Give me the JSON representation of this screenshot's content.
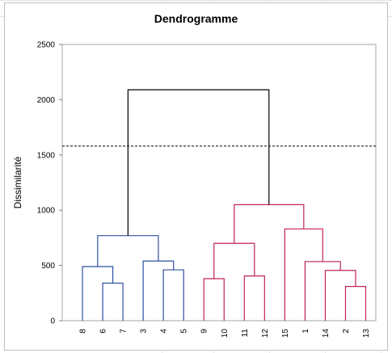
{
  "chart_data": {
    "type": "dendrogram",
    "title": "Dendrogramme",
    "ylabel": "Dissimilarité",
    "xlabel": "",
    "ylim": [
      0,
      2500
    ],
    "yticks": [
      "0",
      "500",
      "1000",
      "1500",
      "2000",
      "2500"
    ],
    "leaves": [
      "8",
      "6",
      "7",
      "3",
      "4",
      "5",
      "9",
      "10",
      "11",
      "12",
      "15",
      "1",
      "14",
      "2",
      "13"
    ],
    "truncation_level": 1580,
    "colors": {
      "cluster_1": "#2e4fa3",
      "cluster_2": "#c0225f",
      "root": "#000000",
      "frame": "#bfbfbf"
    },
    "merges": [
      {
        "left": "6",
        "right": "7",
        "height": 340,
        "cluster": "cluster_1"
      },
      {
        "left": "8",
        "right": "6+7",
        "height": 490,
        "cluster": "cluster_1"
      },
      {
        "left": "4",
        "right": "5",
        "height": 460,
        "cluster": "cluster_1"
      },
      {
        "left": "3",
        "right": "4+5",
        "height": 540,
        "cluster": "cluster_1"
      },
      {
        "left": "8+6+7",
        "right": "3+4+5",
        "height": 770,
        "cluster": "cluster_1"
      },
      {
        "left": "9",
        "right": "10",
        "height": 380,
        "cluster": "cluster_2"
      },
      {
        "left": "11",
        "right": "12",
        "height": 405,
        "cluster": "cluster_2"
      },
      {
        "left": "9+10",
        "right": "11+12",
        "height": 700,
        "cluster": "cluster_2"
      },
      {
        "left": "2",
        "right": "13",
        "height": 310,
        "cluster": "cluster_2"
      },
      {
        "left": "14",
        "right": "2+13",
        "height": 455,
        "cluster": "cluster_2"
      },
      {
        "left": "1",
        "right": "14+2+13",
        "height": 535,
        "cluster": "cluster_2"
      },
      {
        "left": "15",
        "right": "1+14+2+13",
        "height": 830,
        "cluster": "cluster_2"
      },
      {
        "left": "9+10+11+12",
        "right": "15+1+14+2+13",
        "height": 1050,
        "cluster": "cluster_2"
      },
      {
        "left": "cluster_1",
        "right": "cluster_2",
        "height": 2090,
        "cluster": "root"
      }
    ]
  }
}
